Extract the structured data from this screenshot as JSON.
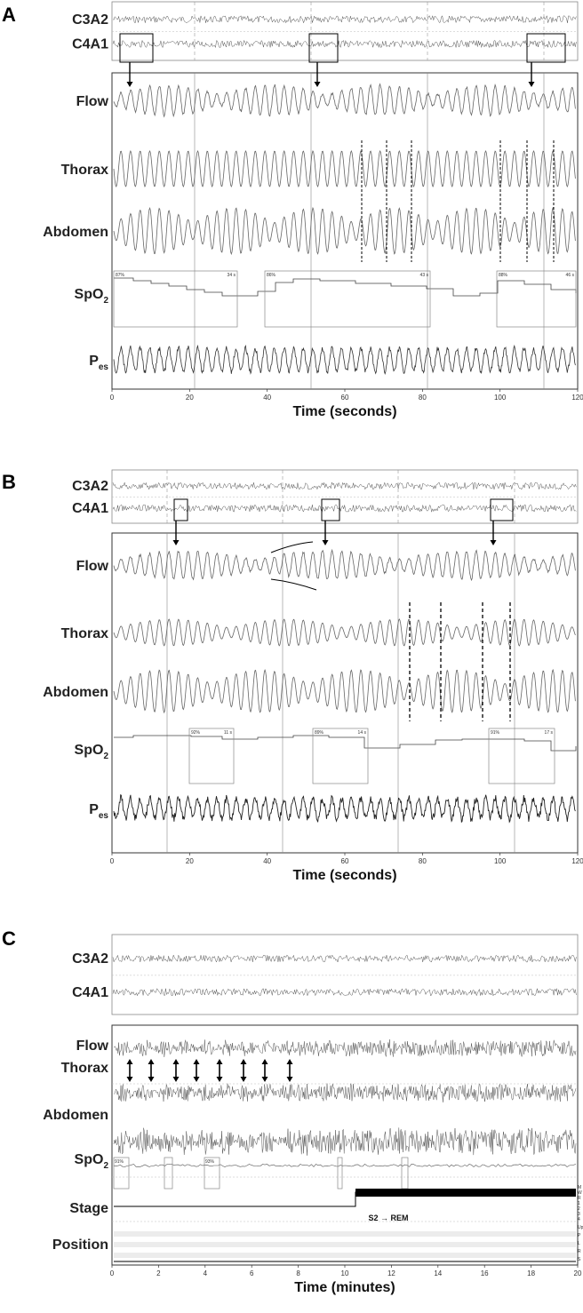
{
  "panels": [
    {
      "id": "A",
      "letter": "A",
      "eeg_labels": [
        "C3A2",
        "C4A1"
      ],
      "channels": [
        "Flow",
        "Thorax",
        "Abdomen",
        "SpO2",
        "Pes"
      ],
      "spo2_boxes": [
        {
          "pct": "87%",
          "dur": "34 s"
        },
        {
          "pct": "86%",
          "dur": "43 s"
        },
        {
          "pct": "88%",
          "dur": "46 s"
        }
      ],
      "x_ticks": [
        "0",
        "20",
        "40",
        "60",
        "80",
        "100",
        "120"
      ],
      "x_label": "Time (seconds)"
    },
    {
      "id": "B",
      "letter": "B",
      "eeg_labels": [
        "C3A2",
        "C4A1"
      ],
      "channels": [
        "Flow",
        "Thorax",
        "Abdomen",
        "SpO2",
        "Pes"
      ],
      "spo2_boxes": [
        {
          "pct": "92%",
          "dur": "11 s"
        },
        {
          "pct": "89%",
          "dur": "14 s"
        },
        {
          "pct": "91%",
          "dur": "17 s"
        }
      ],
      "x_ticks": [
        "0",
        "20",
        "40",
        "60",
        "80",
        "100",
        "120"
      ],
      "x_label": "Time (seconds)"
    },
    {
      "id": "C",
      "letter": "C",
      "eeg_labels": [
        "C3A2",
        "C4A1"
      ],
      "channels": [
        "Flow",
        "Thorax",
        "Abdomen",
        "SpO2",
        "Stage",
        "Position"
      ],
      "spo2_boxes": [
        {
          "pct": "91%",
          "dur": ""
        },
        {
          "pct": "93%",
          "dur": ""
        }
      ],
      "stage_annotation": "S2 → REM",
      "stage_scale": [
        "M",
        "W",
        "R",
        "1",
        "2",
        "3",
        "4"
      ],
      "position_scale": [
        "Up",
        "P",
        "L",
        "R",
        "S"
      ],
      "x_ticks": [
        "0",
        "2",
        "4",
        "6",
        "8",
        "10",
        "12",
        "14",
        "16",
        "18",
        "20"
      ],
      "x_label": "Time (minutes)"
    }
  ]
}
